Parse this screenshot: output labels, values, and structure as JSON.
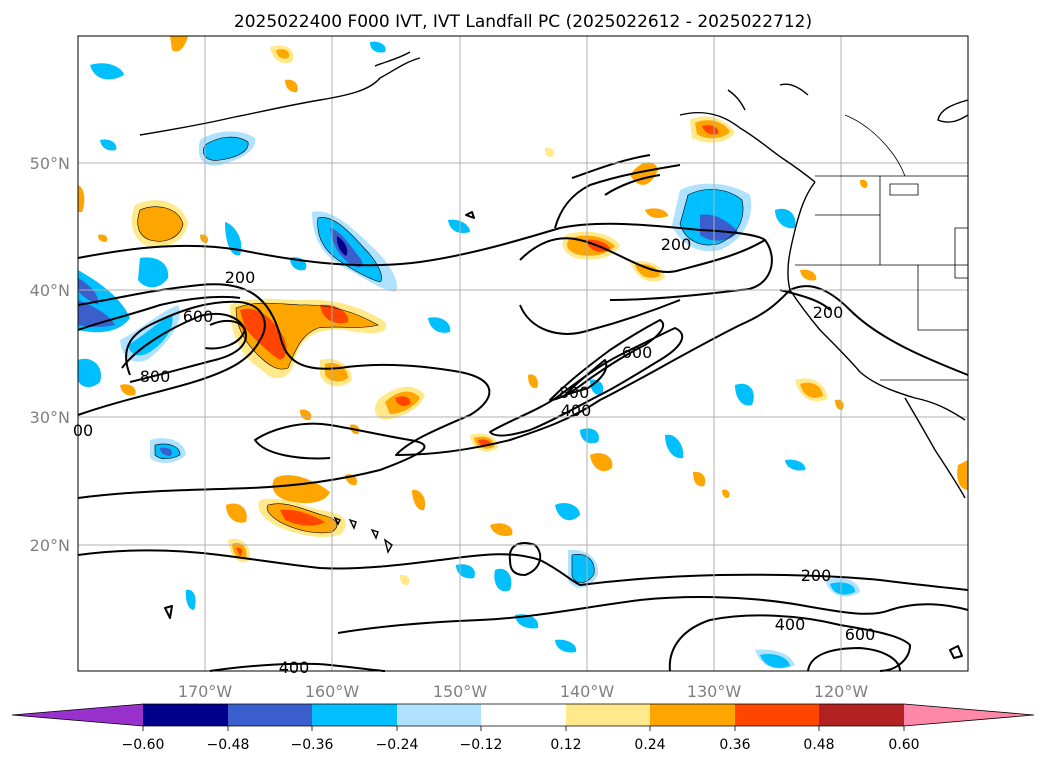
{
  "title": "2025022400 F000 IVT, IVT Landfall PC (2025022612 - 2025022712)",
  "lat_ticks": [
    "50°N",
    "40°N",
    "30°N",
    "20°N"
  ],
  "lon_ticks": [
    "170°W",
    "160°W",
    "150°W",
    "140°W",
    "130°W",
    "120°W"
  ],
  "contour_labels": [
    "200",
    "600",
    "800",
    "200",
    "200",
    "600",
    "800",
    "400",
    "200",
    "400",
    "600",
    "400",
    "00"
  ],
  "colorbar": {
    "tick_labels": [
      "−0.60",
      "−0.48",
      "−0.36",
      "−0.24",
      "−0.12",
      "0.12",
      "0.24",
      "0.36",
      "0.48",
      "0.60"
    ],
    "colors": [
      "#9932cc",
      "#00008b",
      "#3a5fcd",
      "#00bfff",
      "#b0e2ff",
      "#ffffff",
      "#ffe98a",
      "#ffa500",
      "#ff4500",
      "#b22222",
      "#ff88a8"
    ]
  }
}
